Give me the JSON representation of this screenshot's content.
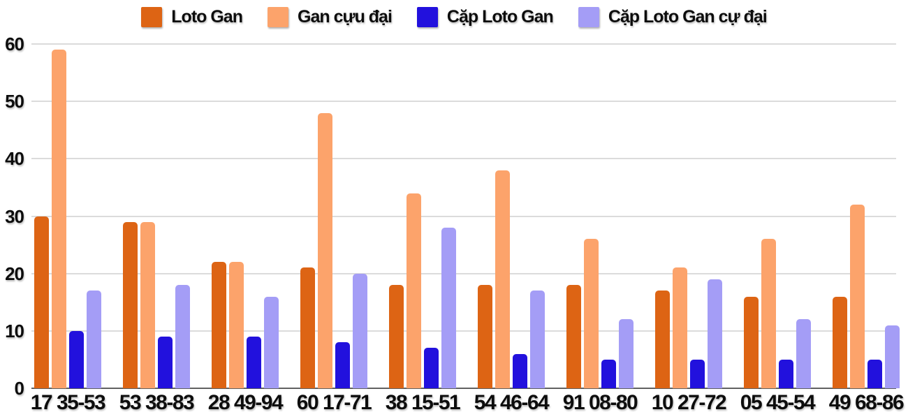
{
  "chart_data": {
    "type": "bar",
    "title": "",
    "xlabel": "",
    "ylabel": "",
    "ylim": [
      0,
      60
    ],
    "yticks": [
      0,
      10,
      20,
      30,
      40,
      50,
      60
    ],
    "grid": true,
    "legend_position": "top",
    "categories": [
      "17 35-53",
      "53 38-83",
      "28 49-94",
      "60 17-71",
      "38 15-51",
      "54 46-64",
      "91 08-80",
      "10 27-72",
      "05 45-54",
      "49 68-86"
    ],
    "series": [
      {
        "name": "Loto Gan",
        "color": "#dd6414",
        "values": [
          30,
          29,
          22,
          21,
          18,
          18,
          18,
          17,
          16,
          16
        ]
      },
      {
        "name": "Gan cựu đại",
        "color": "#fca36b",
        "values": [
          59,
          29,
          22,
          48,
          34,
          38,
          26,
          21,
          26,
          32
        ]
      },
      {
        "name": "Cặp Loto Gan",
        "color": "#2211dd",
        "values": [
          10,
          9,
          9,
          8,
          7,
          6,
          5,
          5,
          5,
          5
        ]
      },
      {
        "name": "Cặp Loto Gan cự đại",
        "color": "#a49df6",
        "values": [
          17,
          18,
          16,
          20,
          28,
          17,
          12,
          19,
          12,
          11
        ]
      }
    ],
    "colors": {
      "gridline": "#dbdbdb",
      "axis_line": "#616161",
      "text": "#0d0d0d"
    }
  }
}
